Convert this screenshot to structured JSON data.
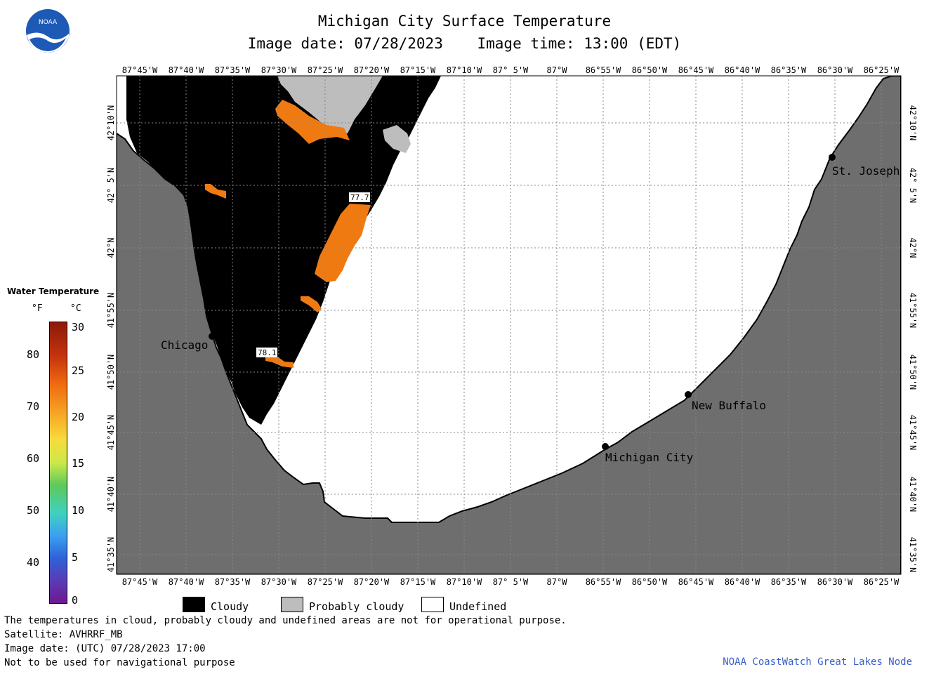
{
  "header": {
    "title": "Michigan City Surface Temperature",
    "image_date": "Image date: 07/28/2023",
    "image_time": "Image time: 13:00 (EDT)"
  },
  "logo": {
    "text": "NOAA",
    "color": "#1d5ab5"
  },
  "axes": {
    "longitudes": [
      "87°45'W",
      "87°40'W",
      "87°35'W",
      "87°30'W",
      "87°25'W",
      "87°20'W",
      "87°15'W",
      "87°10'W",
      "87° 5'W",
      "87°W",
      "86°55'W",
      "86°50'W",
      "86°45'W",
      "86°40'W",
      "86°35'W",
      "86°30'W",
      "86°25'W"
    ],
    "latitudes": [
      "42°10'N",
      "42° 5'N",
      "42°N",
      "41°55'N",
      "41°50'N",
      "41°45'N",
      "41°40'N",
      "41°35'N"
    ]
  },
  "cities": [
    {
      "name": "Chicago"
    },
    {
      "name": "St. Joseph"
    },
    {
      "name": "New Buffalo"
    },
    {
      "name": "Michigan City"
    }
  ],
  "value_labels": [
    "77.7",
    "78.1"
  ],
  "colors": {
    "land": "#6e6e6e",
    "cloudy": "#000000",
    "probably_cloudy": "#bdbdbd",
    "undefined": "#ffffff",
    "warm_water": "#f07a12"
  },
  "color_scale": {
    "title": "Water Temperature",
    "unit_f": "°F",
    "unit_c": "°C",
    "ticks_f": [
      "80",
      "70",
      "60",
      "50",
      "40"
    ],
    "ticks_c": [
      "30",
      "25",
      "20",
      "15",
      "10",
      "5",
      "0"
    ]
  },
  "legend": {
    "cloudy": "Cloudy",
    "probably_cloudy": "Probably cloudy",
    "undefined": "Undefined"
  },
  "footer": {
    "note": "The temperatures in cloud, probably cloudy and undefined areas are not for operational purpose.",
    "satellite": "Satellite: AVHRRF_MB",
    "utc_date": "Image date: (UTC) 07/28/2023  17:00",
    "nav_warning": "Not to be used for navigational purpose",
    "credit": "NOAA CoastWatch Great Lakes Node"
  }
}
